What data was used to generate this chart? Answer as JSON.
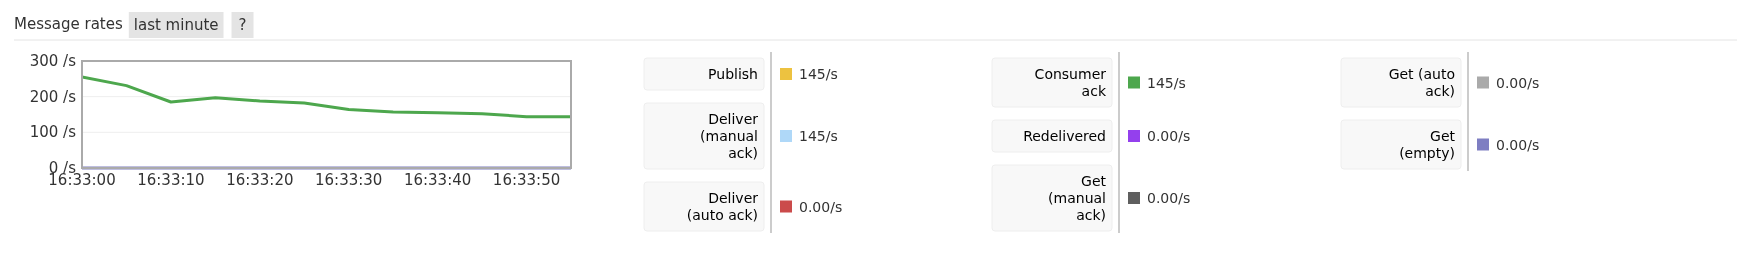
{
  "chart_data": {
    "type": "line",
    "title": "Message rates",
    "subtitle": "last minute",
    "annotations": [
      "?",
      "145/s",
      "145/s",
      "0.00/s",
      "145/s",
      "0.00/s",
      "0.00/s",
      "0.00/s",
      "0.00/s"
    ],
    "x": [
      16.55,
      16.551389,
      16.552778,
      16.554167,
      16.555556,
      16.556944,
      16.558333,
      16.559722,
      16.561111,
      16.5625,
      16.563889,
      16.565278
    ],
    "xlim": [
      16.55,
      16.565278
    ],
    "xticks": [
      {
        "value": 16.55,
        "label": "16:33:00"
      },
      {
        "value": 16.552778,
        "label": "16:33:10"
      },
      {
        "value": 16.555556,
        "label": "16:33:20"
      },
      {
        "value": 16.558333,
        "label": "16:33:30"
      },
      {
        "value": 16.561111,
        "label": "16:33:40"
      },
      {
        "value": 16.563889,
        "label": "16:33:50"
      }
    ],
    "ylim": [
      0,
      300
    ],
    "yticks": [
      {
        "value": 0,
        "label": "0 /s"
      },
      {
        "value": 100,
        "label": "100 /s"
      },
      {
        "value": 200,
        "label": "200 /s"
      },
      {
        "value": 300,
        "label": "300 /s"
      }
    ],
    "grid": "y",
    "legend": "right",
    "marker": "none",
    "series": [
      {
        "name": "Publish",
        "color": "#edc240",
        "values": [
          null,
          null,
          null,
          null,
          null,
          null,
          null,
          null,
          null,
          null,
          null,
          null
        ]
      },
      {
        "name": "Deliver (manual ack)",
        "color": "#afd8f8",
        "values": [
          null,
          null,
          null,
          null,
          null,
          null,
          null,
          null,
          null,
          null,
          null,
          null
        ]
      },
      {
        "name": "Deliver (auto ack)",
        "color": "#cb4b4b",
        "values": [
          null,
          null,
          null,
          null,
          null,
          null,
          null,
          null,
          null,
          null,
          null,
          null
        ]
      },
      {
        "name": "Consumer ack",
        "color": "#4da74d",
        "values": [
          255,
          231,
          185,
          197,
          188,
          182,
          164,
          157,
          155,
          152,
          144,
          144
        ]
      },
      {
        "name": "Redelivered",
        "color": "#9440ed",
        "values": [
          null,
          null,
          null,
          null,
          null,
          null,
          null,
          null,
          null,
          null,
          null,
          null
        ]
      },
      {
        "name": "Get (manual ack)",
        "color": "#5f5f5f",
        "values": [
          null,
          null,
          null,
          null,
          null,
          null,
          null,
          null,
          null,
          null,
          null,
          null
        ]
      },
      {
        "name": "Get (auto ack)",
        "color": "#aaaaaa",
        "values": [
          null,
          null,
          null,
          null,
          null,
          null,
          null,
          null,
          null,
          null,
          null,
          null
        ]
      },
      {
        "name": "Get (empty)",
        "color": "#7e7ec2",
        "values": [
          0,
          0,
          0,
          0,
          0,
          0,
          0,
          0,
          0,
          0,
          0,
          0
        ]
      }
    ]
  }
}
